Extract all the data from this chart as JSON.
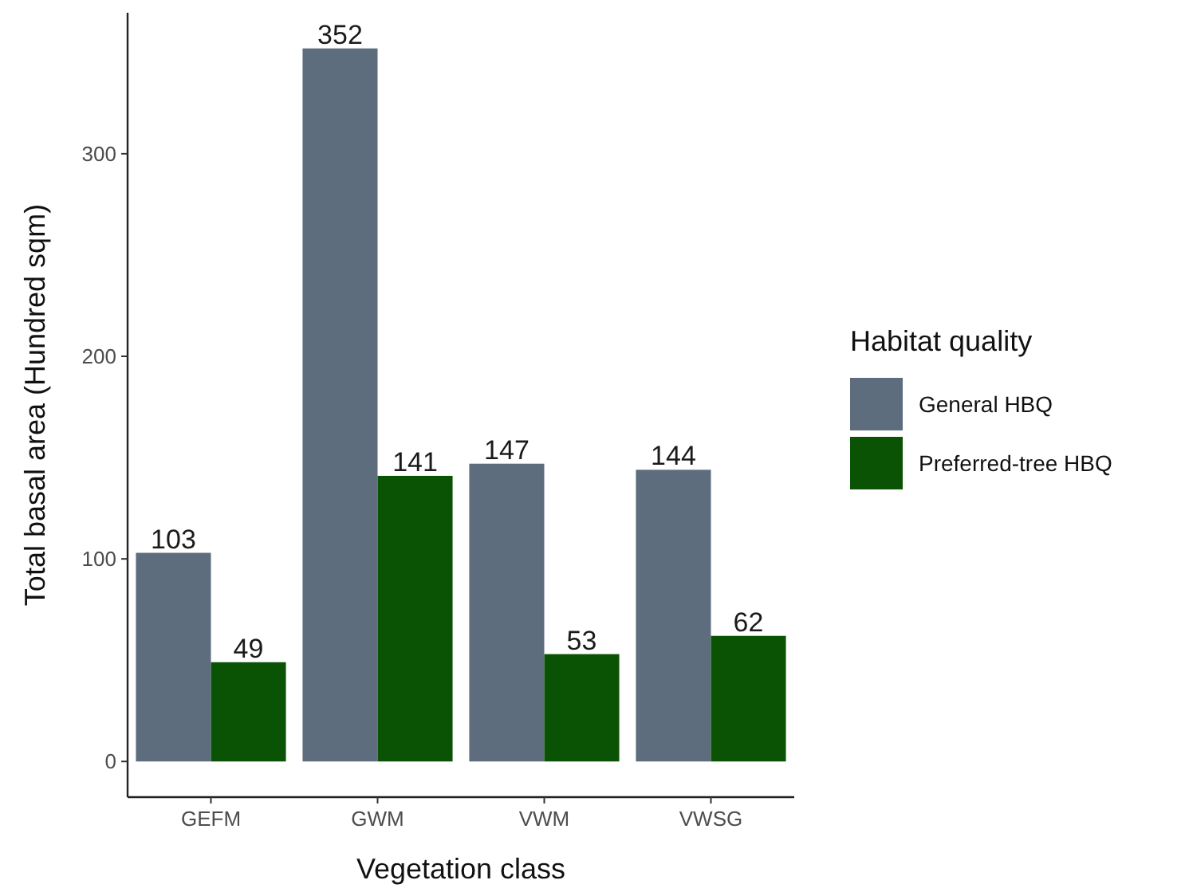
{
  "chart_data": {
    "type": "bar",
    "xlabel": "Vegetation class",
    "ylabel": "Total basal area (Hundred sqm)",
    "legend_title": "Habitat quality",
    "categories": [
      "GEFM",
      "GWM",
      "VWM",
      "VWSG"
    ],
    "series": [
      {
        "name": "General HBQ",
        "color": "#5d6d7e",
        "values": [
          103,
          352,
          147,
          144
        ]
      },
      {
        "name": "Preferred-tree HBQ",
        "color": "#0b5304",
        "values": [
          49,
          141,
          53,
          62
        ]
      }
    ],
    "ylim": [
      -17.6,
      369.6
    ],
    "yticks": [
      0,
      100,
      200,
      300
    ],
    "data_labels": true,
    "grid": false,
    "legend": "right"
  }
}
